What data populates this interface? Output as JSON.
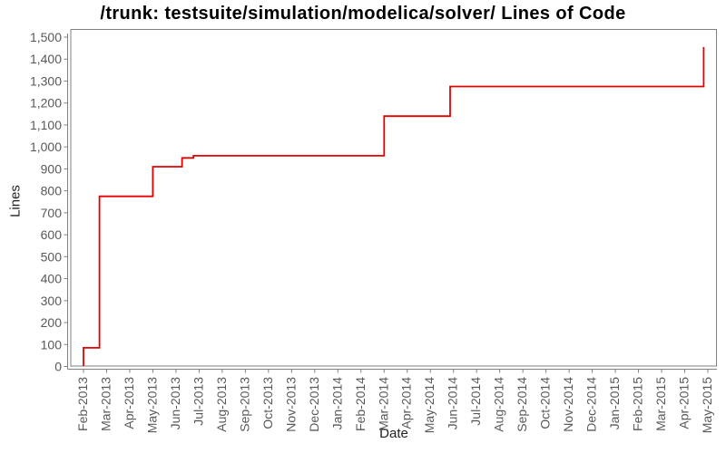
{
  "chart_data": {
    "type": "line",
    "style": "step",
    "title": "/trunk: testsuite/simulation/modelica/solver/ Lines of Code",
    "xlabel": "Date",
    "ylabel": "Lines",
    "grid": false,
    "legend": "none",
    "ylim": [
      0,
      1500
    ],
    "y_ticks": [
      0,
      100,
      200,
      300,
      400,
      500,
      600,
      700,
      800,
      900,
      1000,
      1100,
      1200,
      1300,
      1400,
      1500
    ],
    "y_tick_labels": [
      "0",
      "100",
      "200",
      "300",
      "400",
      "500",
      "600",
      "700",
      "800",
      "900",
      "1,000",
      "1,100",
      "1,200",
      "1,300",
      "1,400",
      "1,500"
    ],
    "x_tick_labels": [
      "Feb-2013",
      "Mar-2013",
      "Apr-2013",
      "May-2013",
      "Jun-2013",
      "Jul-2013",
      "Aug-2013",
      "Sep-2013",
      "Oct-2013",
      "Nov-2013",
      "Dec-2013",
      "Jan-2014",
      "Feb-2014",
      "Mar-2014",
      "Apr-2014",
      "May-2014",
      "Jun-2014",
      "Jul-2014",
      "Aug-2014",
      "Sep-2014",
      "Oct-2014",
      "Nov-2014",
      "Dec-2014",
      "Jan-2015",
      "Feb-2015",
      "Mar-2015",
      "Apr-2015",
      "May-2015"
    ],
    "series": [
      {
        "name": "Lines of Code",
        "color": "#e60000",
        "points": [
          [
            "2013-02-01",
            0
          ],
          [
            "2013-02-01",
            85
          ],
          [
            "2013-02-22",
            775
          ],
          [
            "2013-05-01",
            910
          ],
          [
            "2013-06-09",
            950
          ],
          [
            "2013-06-24",
            960
          ],
          [
            "2014-03-01",
            1140
          ],
          [
            "2014-05-27",
            1275
          ],
          [
            "2015-04-26",
            1455
          ]
        ]
      }
    ]
  },
  "colors": {
    "line": "#e60000",
    "axis": "#808080",
    "tick_text": "#595959",
    "title_text": "#000000",
    "background": "#ffffff"
  }
}
